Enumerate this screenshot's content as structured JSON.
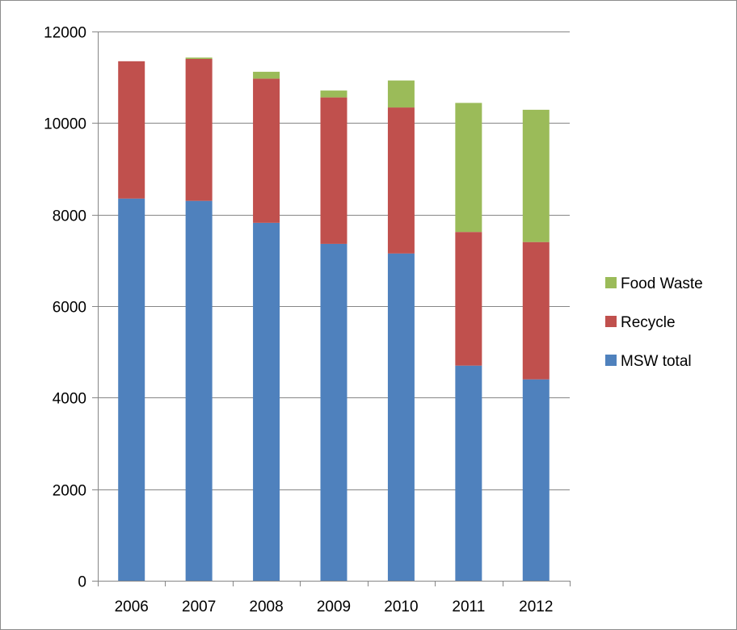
{
  "chart_data": {
    "type": "bar",
    "stacked": true,
    "title": "",
    "xlabel": "",
    "ylabel": "",
    "categories": [
      "2006",
      "2007",
      "2008",
      "2009",
      "2010",
      "2011",
      "2012"
    ],
    "series": [
      {
        "name": "MSW total",
        "color": "#4f81bd",
        "values": [
          8350,
          8300,
          7820,
          7360,
          7150,
          4700,
          4400
        ]
      },
      {
        "name": "Recycle",
        "color": "#c0504d",
        "values": [
          3000,
          3100,
          3150,
          3200,
          3190,
          2920,
          3000
        ]
      },
      {
        "name": "Food Waste",
        "color": "#9bbb59",
        "values": [
          0,
          30,
          150,
          150,
          590,
          2820,
          2890
        ]
      }
    ],
    "ylim": [
      0,
      12000
    ],
    "yticks": [
      0,
      2000,
      4000,
      6000,
      8000,
      10000,
      12000
    ],
    "grid": true,
    "legend": {
      "position": "right",
      "order": [
        "Food Waste",
        "Recycle",
        "MSW total"
      ]
    },
    "colors": {
      "axis": "#868686",
      "grid": "#868686"
    }
  }
}
